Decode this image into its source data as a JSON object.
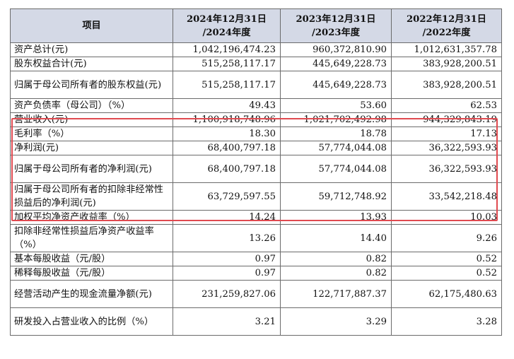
{
  "table": {
    "headers": [
      "项目",
      "2024年12月31日\n/2024年度",
      "2023年12月31日\n/2023年度",
      "2022年12月31日\n/2022年度"
    ],
    "rows": [
      {
        "label": "资产总计(元)",
        "values": [
          "1,042,196,474.23",
          "960,372,810.90",
          "1,012,631,357.78"
        ]
      },
      {
        "label": "股东权益合计(元)",
        "values": [
          "515,258,117.17",
          "445,649,228.73",
          "383,928,200.51"
        ]
      },
      {
        "label": "归属于母公司所有者的股东权益(元)",
        "values": [
          "515,258,117.17",
          "445,649,228.73",
          "383,928,200.51"
        ]
      },
      {
        "label": "资产负债率（母公司）（%）",
        "values": [
          "49.43",
          "53.60",
          "62.53"
        ]
      },
      {
        "label": "营业收入(元)",
        "values": [
          "1,100,918,748.96",
          "1,021,702,492.98",
          "944,329,843.19"
        ]
      },
      {
        "label": "毛利率（%）",
        "values": [
          "18.30",
          "18.78",
          "17.13"
        ]
      },
      {
        "label": "净利润(元)",
        "values": [
          "68,400,797.18",
          "57,774,044.08",
          "36,322,593.93"
        ]
      },
      {
        "label": "归属于母公司所有者的净利润(元)",
        "values": [
          "68,400,797.18",
          "57,774,044.08",
          "36,322,593.93"
        ]
      },
      {
        "label": "归属于母公司所有者的扣除非经常性损益后的净利润(元)",
        "values": [
          "63,729,597.55",
          "59,712,748.92",
          "33,542,218.48"
        ]
      },
      {
        "label": "加权平均净资产收益率（%）",
        "values": [
          "14.24",
          "13.93",
          "10.03"
        ]
      },
      {
        "label": "扣除非经常性损益后净资产收益率（%）",
        "values": [
          "13.26",
          "14.40",
          "9.26"
        ]
      },
      {
        "label": "基本每股收益（元/股）",
        "values": [
          "0.97",
          "0.82",
          "0.52"
        ]
      },
      {
        "label": "稀释每股收益（元/股）",
        "values": [
          "0.97",
          "0.82",
          "0.52"
        ]
      },
      {
        "label": "经营活动产生的现金流量净额(元)",
        "values": [
          "231,259,827.06",
          "122,717,887.37",
          "62,175,480.63"
        ]
      },
      {
        "label": "研发投入占营业收入的比例（%）",
        "values": [
          "3.21",
          "3.29",
          "3.28"
        ]
      }
    ]
  },
  "colors": {
    "header_background": "#d4d9e6",
    "highlight_border": "#e04a50",
    "grid_line": "#6b6b6b"
  }
}
